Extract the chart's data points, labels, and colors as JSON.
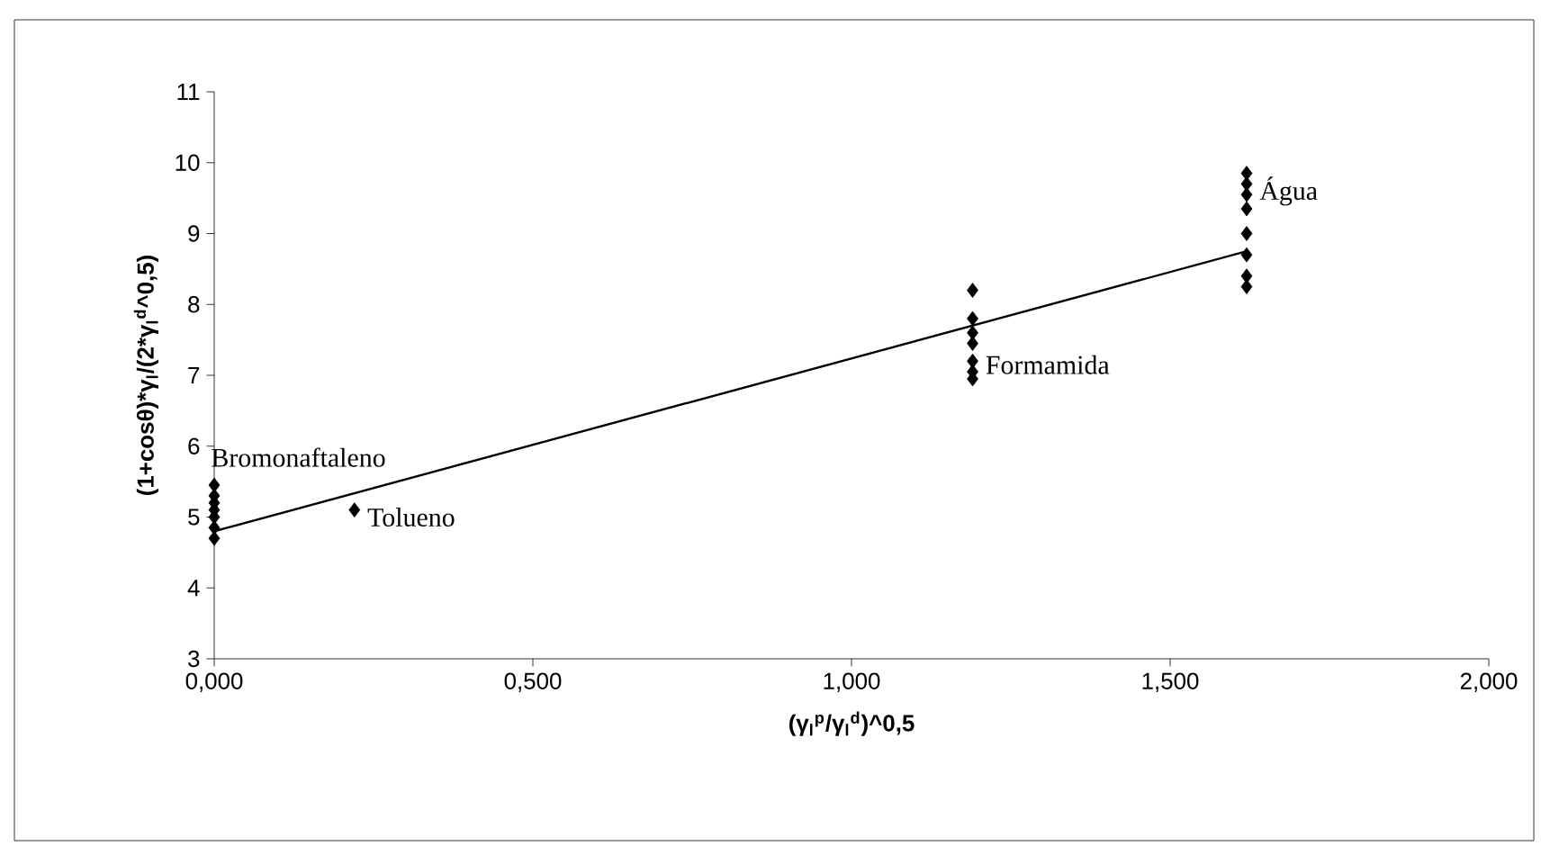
{
  "chart_data": {
    "type": "scatter",
    "xlabel": "(γ$_{l}$$^{p}$/γ$_{l}$$^{d}$)^0,5",
    "ylabel": "(1+cosθ)*γ$_{l}$/(2*γ$_{l}$$^{d}$^0,5)",
    "xlim": [
      0,
      2
    ],
    "ylim": [
      3,
      11
    ],
    "xticks": [
      {
        "value": 0,
        "label": "0,000"
      },
      {
        "value": 0.5,
        "label": "0,500"
      },
      {
        "value": 1,
        "label": "1,000"
      },
      {
        "value": 1.5,
        "label": "1,500"
      },
      {
        "value": 2,
        "label": "2,000"
      }
    ],
    "yticks": [
      3,
      4,
      5,
      6,
      7,
      8,
      9,
      10,
      11
    ],
    "marker": "diamond",
    "series": [
      {
        "color": "#000000",
        "x": [
          0,
          0,
          0,
          0,
          0,
          0,
          0,
          0.22,
          1.19,
          1.19,
          1.19,
          1.19,
          1.19,
          1.19,
          1.19,
          1.62,
          1.62,
          1.62,
          1.62,
          1.62,
          1.62,
          1.62,
          1.62
        ],
        "values": [
          4.7,
          4.85,
          5.0,
          5.1,
          5.2,
          5.3,
          5.45,
          5.1,
          6.95,
          7.05,
          7.2,
          7.45,
          7.6,
          7.8,
          8.2,
          8.25,
          8.4,
          8.7,
          9.0,
          9.35,
          9.55,
          9.7,
          9.85
        ]
      },
      {
        "type": "line",
        "color": "#000000",
        "marker": "none",
        "x": [
          0,
          1.62
        ],
        "values": [
          4.8,
          8.75
        ]
      }
    ],
    "annotations": [
      {
        "text": "Bromonaftaleno",
        "x": 0,
        "y": 5.45
      },
      {
        "text": "Tolueno",
        "x": 0.22,
        "y": 5.0
      },
      {
        "text": "Formamida",
        "x": 1.19,
        "y": 7.15
      },
      {
        "text": "Água",
        "x": 1.62,
        "y": 9.6
      }
    ]
  }
}
